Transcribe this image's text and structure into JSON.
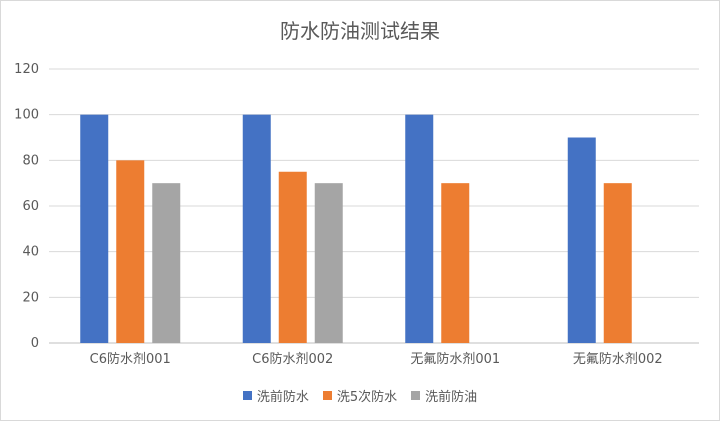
{
  "chart_data": {
    "type": "bar",
    "title": "防水防油测试结果",
    "categories": [
      "C6防水剂001",
      "C6防水剂002",
      "无氟防水剂001",
      "无氟防水剂002"
    ],
    "series": [
      {
        "name": "洗前防水",
        "color": "#4472C4",
        "values": [
          100,
          100,
          100,
          90
        ]
      },
      {
        "name": "洗5次防水",
        "color": "#ED7D31",
        "values": [
          80,
          75,
          70,
          70
        ]
      },
      {
        "name": "洗前防油",
        "color": "#A5A5A5",
        "values": [
          70,
          70,
          null,
          null
        ]
      }
    ],
    "xlabel": "",
    "ylabel": "",
    "ylim": [
      0,
      120
    ],
    "yticks": [
      0,
      20,
      40,
      60,
      80,
      100,
      120
    ],
    "grid": true,
    "legend": "bottom"
  }
}
